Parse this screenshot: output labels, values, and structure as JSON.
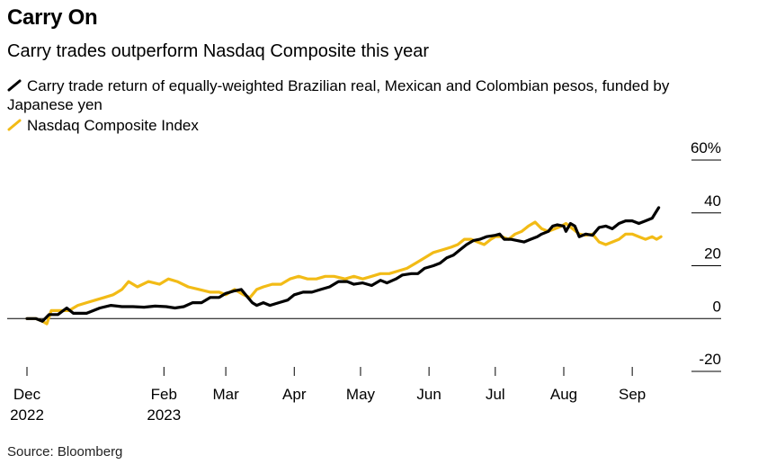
{
  "title": "Carry On",
  "subtitle": "Carry trades outperform Nasdaq Composite this year",
  "source": "Source: Bloomberg",
  "colors": {
    "carry": "#000000",
    "nasdaq": "#f2bb16",
    "axis": "#000000"
  },
  "chart_data": {
    "type": "line",
    "legend_placement": "top-left",
    "grid": false,
    "ylim": [
      -20,
      60
    ],
    "yticks": [
      {
        "value": 60,
        "label": "60%"
      },
      {
        "value": 40,
        "label": "40"
      },
      {
        "value": 20,
        "label": "20"
      },
      {
        "value": 0,
        "label": "0"
      },
      {
        "value": -20,
        "label": "-20"
      }
    ],
    "xlim": [
      "2022-12-01",
      "2023-09-16"
    ],
    "xticks": [
      {
        "date": "2022-12-01",
        "label": "Dec",
        "label2": "2022"
      },
      {
        "date": "2023-02-01",
        "label": "Feb",
        "label2": "2023"
      },
      {
        "date": "2023-03-01",
        "label": "Mar",
        "label2": ""
      },
      {
        "date": "2023-04-01",
        "label": "Apr",
        "label2": ""
      },
      {
        "date": "2023-05-01",
        "label": "May",
        "label2": ""
      },
      {
        "date": "2023-06-01",
        "label": "Jun",
        "label2": ""
      },
      {
        "date": "2023-07-01",
        "label": "Jul",
        "label2": ""
      },
      {
        "date": "2023-08-01",
        "label": "Aug",
        "label2": ""
      },
      {
        "date": "2023-09-01",
        "label": "Sep",
        "label2": ""
      }
    ],
    "series": [
      {
        "name": "Carry trade return of equally-weighted Brazilian real, Mexican and Colombian pesos, funded by Japanese yen",
        "color": "#000000",
        "points": [
          [
            "2022-12-01",
            0
          ],
          [
            "2022-12-05",
            0
          ],
          [
            "2022-12-08",
            -1
          ],
          [
            "2022-12-11",
            1.5
          ],
          [
            "2022-12-15",
            1.5
          ],
          [
            "2022-12-19",
            4
          ],
          [
            "2022-12-22",
            2
          ],
          [
            "2022-12-28",
            2
          ],
          [
            "2023-01-03",
            4
          ],
          [
            "2023-01-08",
            5
          ],
          [
            "2023-01-13",
            4.5
          ],
          [
            "2023-01-18",
            4.5
          ],
          [
            "2023-01-23",
            4.3
          ],
          [
            "2023-01-28",
            4.7
          ],
          [
            "2023-02-02",
            4.5
          ],
          [
            "2023-02-06",
            4
          ],
          [
            "2023-02-10",
            4.5
          ],
          [
            "2023-02-14",
            6
          ],
          [
            "2023-02-18",
            6
          ],
          [
            "2023-02-22",
            8
          ],
          [
            "2023-02-26",
            8
          ],
          [
            "2023-03-01",
            9.5
          ],
          [
            "2023-03-05",
            10.5
          ],
          [
            "2023-03-08",
            11
          ],
          [
            "2023-03-10",
            9
          ],
          [
            "2023-03-13",
            6
          ],
          [
            "2023-03-15",
            5
          ],
          [
            "2023-03-18",
            6
          ],
          [
            "2023-03-21",
            5
          ],
          [
            "2023-03-25",
            6
          ],
          [
            "2023-03-29",
            7
          ],
          [
            "2023-04-01",
            9
          ],
          [
            "2023-04-05",
            10
          ],
          [
            "2023-04-09",
            10
          ],
          [
            "2023-04-13",
            11
          ],
          [
            "2023-04-17",
            12
          ],
          [
            "2023-04-21",
            14
          ],
          [
            "2023-04-25",
            14
          ],
          [
            "2023-04-28",
            13
          ],
          [
            "2023-05-02",
            13.5
          ],
          [
            "2023-05-06",
            12.5
          ],
          [
            "2023-05-10",
            14.5
          ],
          [
            "2023-05-13",
            13.5
          ],
          [
            "2023-05-17",
            15
          ],
          [
            "2023-05-20",
            16.5
          ],
          [
            "2023-05-24",
            17
          ],
          [
            "2023-05-27",
            17
          ],
          [
            "2023-05-30",
            19
          ],
          [
            "2023-06-03",
            20
          ],
          [
            "2023-06-06",
            21
          ],
          [
            "2023-06-09",
            23
          ],
          [
            "2023-06-12",
            24
          ],
          [
            "2023-06-15",
            26
          ],
          [
            "2023-06-18",
            28
          ],
          [
            "2023-06-21",
            29.5
          ],
          [
            "2023-06-24",
            30
          ],
          [
            "2023-06-27",
            31
          ],
          [
            "2023-07-01",
            31.5
          ],
          [
            "2023-07-03",
            32
          ],
          [
            "2023-07-05",
            30
          ],
          [
            "2023-07-08",
            30
          ],
          [
            "2023-07-11",
            29.5
          ],
          [
            "2023-07-14",
            29
          ],
          [
            "2023-07-17",
            30
          ],
          [
            "2023-07-20",
            31
          ],
          [
            "2023-07-22",
            32
          ],
          [
            "2023-07-25",
            33
          ],
          [
            "2023-07-27",
            35
          ],
          [
            "2023-07-29",
            35.5
          ],
          [
            "2023-08-01",
            35
          ],
          [
            "2023-08-02",
            33
          ],
          [
            "2023-08-04",
            36
          ],
          [
            "2023-08-06",
            35
          ],
          [
            "2023-08-08",
            31
          ],
          [
            "2023-08-11",
            32
          ],
          [
            "2023-08-14",
            31.5
          ],
          [
            "2023-08-17",
            34.5
          ],
          [
            "2023-08-20",
            35
          ],
          [
            "2023-08-23",
            34
          ],
          [
            "2023-08-26",
            36
          ],
          [
            "2023-08-29",
            37
          ],
          [
            "2023-09-01",
            37
          ],
          [
            "2023-09-04",
            36
          ],
          [
            "2023-09-07",
            37
          ],
          [
            "2023-09-10",
            38
          ],
          [
            "2023-09-13",
            42
          ]
        ]
      },
      {
        "name": "Nasdaq Composite Index",
        "color": "#f2bb16",
        "points": [
          [
            "2022-12-01",
            0
          ],
          [
            "2022-12-05",
            0
          ],
          [
            "2022-12-08",
            -1
          ],
          [
            "2022-12-10",
            -2
          ],
          [
            "2022-12-12",
            3
          ],
          [
            "2022-12-15",
            3
          ],
          [
            "2022-12-20",
            3
          ],
          [
            "2022-12-24",
            5
          ],
          [
            "2022-12-28",
            6
          ],
          [
            "2023-01-01",
            7
          ],
          [
            "2023-01-05",
            8
          ],
          [
            "2023-01-09",
            9
          ],
          [
            "2023-01-13",
            11
          ],
          [
            "2023-01-16",
            14
          ],
          [
            "2023-01-20",
            12
          ],
          [
            "2023-01-25",
            14
          ],
          [
            "2023-01-30",
            13
          ],
          [
            "2023-02-03",
            15
          ],
          [
            "2023-02-07",
            14
          ],
          [
            "2023-02-12",
            12
          ],
          [
            "2023-02-17",
            11
          ],
          [
            "2023-02-22",
            10
          ],
          [
            "2023-02-26",
            10
          ],
          [
            "2023-03-01",
            9
          ],
          [
            "2023-03-05",
            11
          ],
          [
            "2023-03-09",
            9
          ],
          [
            "2023-03-12",
            8
          ],
          [
            "2023-03-15",
            11
          ],
          [
            "2023-03-18",
            12
          ],
          [
            "2023-03-22",
            13
          ],
          [
            "2023-03-26",
            13
          ],
          [
            "2023-03-30",
            15
          ],
          [
            "2023-04-03",
            16
          ],
          [
            "2023-04-07",
            15
          ],
          [
            "2023-04-11",
            15
          ],
          [
            "2023-04-15",
            16
          ],
          [
            "2023-04-19",
            16
          ],
          [
            "2023-04-24",
            15
          ],
          [
            "2023-04-28",
            16
          ],
          [
            "2023-05-02",
            15
          ],
          [
            "2023-05-06",
            16
          ],
          [
            "2023-05-10",
            17
          ],
          [
            "2023-05-14",
            17
          ],
          [
            "2023-05-18",
            18
          ],
          [
            "2023-05-22",
            19
          ],
          [
            "2023-05-26",
            21
          ],
          [
            "2023-05-30",
            23
          ],
          [
            "2023-06-03",
            25
          ],
          [
            "2023-06-07",
            26
          ],
          [
            "2023-06-11",
            27
          ],
          [
            "2023-06-14",
            28
          ],
          [
            "2023-06-17",
            30
          ],
          [
            "2023-06-20",
            30
          ],
          [
            "2023-06-23",
            29
          ],
          [
            "2023-06-26",
            28
          ],
          [
            "2023-06-29",
            30
          ],
          [
            "2023-07-01",
            31
          ],
          [
            "2023-07-04",
            31
          ],
          [
            "2023-07-07",
            30
          ],
          [
            "2023-07-10",
            32
          ],
          [
            "2023-07-13",
            33
          ],
          [
            "2023-07-16",
            35
          ],
          [
            "2023-07-19",
            36.5
          ],
          [
            "2023-07-22",
            34
          ],
          [
            "2023-07-25",
            33
          ],
          [
            "2023-07-28",
            34
          ],
          [
            "2023-07-31",
            35
          ],
          [
            "2023-08-02",
            36
          ],
          [
            "2023-08-05",
            34
          ],
          [
            "2023-08-08",
            32
          ],
          [
            "2023-08-11",
            31.5
          ],
          [
            "2023-08-14",
            32
          ],
          [
            "2023-08-17",
            29
          ],
          [
            "2023-08-20",
            28
          ],
          [
            "2023-08-23",
            29
          ],
          [
            "2023-08-26",
            30
          ],
          [
            "2023-08-29",
            32
          ],
          [
            "2023-09-01",
            32
          ],
          [
            "2023-09-04",
            31
          ],
          [
            "2023-09-07",
            30
          ],
          [
            "2023-09-10",
            31
          ],
          [
            "2023-09-12",
            30
          ],
          [
            "2023-09-14",
            31
          ]
        ]
      }
    ]
  }
}
